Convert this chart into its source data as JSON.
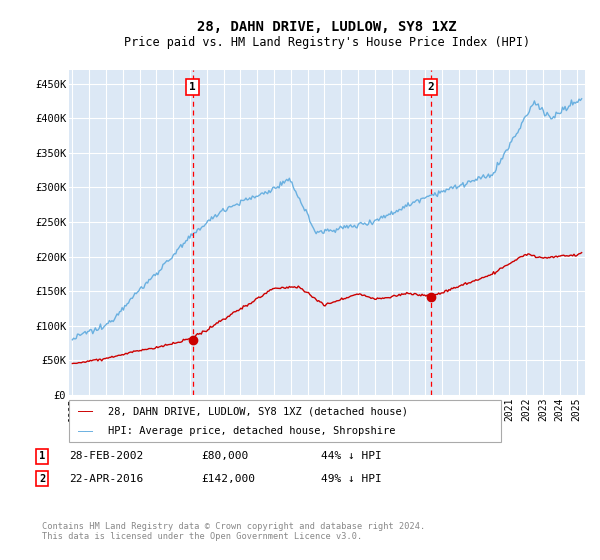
{
  "title": "28, DAHN DRIVE, LUDLOW, SY8 1XZ",
  "subtitle": "Price paid vs. HM Land Registry's House Price Index (HPI)",
  "hpi_label": "HPI: Average price, detached house, Shropshire",
  "property_label": "28, DAHN DRIVE, LUDLOW, SY8 1XZ (detached house)",
  "footnote": "Contains HM Land Registry data © Crown copyright and database right 2024.\nThis data is licensed under the Open Government Licence v3.0.",
  "transaction1": {
    "date": "28-FEB-2002",
    "price": "£80,000",
    "hpi_rel": "44% ↓ HPI"
  },
  "transaction2": {
    "date": "22-APR-2016",
    "price": "£142,000",
    "hpi_rel": "49% ↓ HPI"
  },
  "hpi_color": "#6ab0e0",
  "property_color": "#cc0000",
  "marker1_x": 2002.15,
  "marker2_x": 2016.31,
  "marker1_y_prop": 80000,
  "marker2_y_prop": 142000,
  "bg_color": "#dce8f5",
  "grid_color": "#ffffff",
  "ylim": [
    0,
    470000
  ],
  "xlim": [
    1994.8,
    2025.5
  ]
}
